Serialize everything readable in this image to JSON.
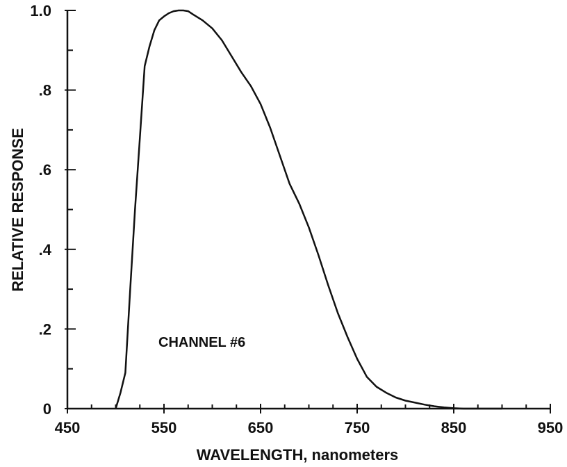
{
  "chart_data": {
    "type": "line",
    "xlabel": "WAVELENGTH, nanometers",
    "ylabel": "RELATIVE RESPONSE",
    "annotation": "CHANNEL #6",
    "xlim": [
      450,
      950
    ],
    "ylim": [
      0,
      1.0
    ],
    "x_major_ticks": [
      450,
      550,
      650,
      750,
      850,
      950
    ],
    "x_major_tick_labels": [
      "450",
      "550",
      "650",
      "750",
      "850",
      "950"
    ],
    "x_minor_ticks": [
      475,
      500,
      525,
      575,
      600,
      625,
      675,
      700,
      725,
      775,
      800,
      825,
      875,
      900,
      925
    ],
    "y_major_ticks": [
      0,
      0.2,
      0.4,
      0.6,
      0.8,
      1.0
    ],
    "y_major_tick_labels": [
      "0",
      ".2",
      ".4",
      ".6",
      ".8",
      "1.0"
    ],
    "y_minor_ticks": [
      0.1,
      0.3,
      0.5,
      0.7,
      0.9
    ],
    "grid": false,
    "series": [
      {
        "x": [
          500,
          505,
          510,
          515,
          520,
          525,
          530,
          535,
          540,
          545,
          550,
          555,
          560,
          565,
          570,
          575,
          580,
          590,
          600,
          610,
          620,
          630,
          640,
          650,
          660,
          670,
          680,
          690,
          700,
          710,
          720,
          730,
          740,
          750,
          760,
          770,
          780,
          790,
          800,
          810,
          820,
          830,
          840,
          850,
          860,
          870,
          880,
          890,
          900
        ],
        "y": [
          0,
          0.04,
          0.09,
          0.3,
          0.5,
          0.68,
          0.86,
          0.91,
          0.95,
          0.975,
          0.985,
          0.993,
          0.998,
          1.0,
          1.0,
          0.998,
          0.99,
          0.975,
          0.955,
          0.925,
          0.885,
          0.845,
          0.81,
          0.765,
          0.705,
          0.635,
          0.565,
          0.515,
          0.455,
          0.385,
          0.31,
          0.24,
          0.18,
          0.125,
          0.08,
          0.055,
          0.04,
          0.028,
          0.02,
          0.015,
          0.01,
          0.006,
          0.003,
          0.001,
          0,
          0,
          0,
          0,
          0
        ]
      }
    ]
  }
}
